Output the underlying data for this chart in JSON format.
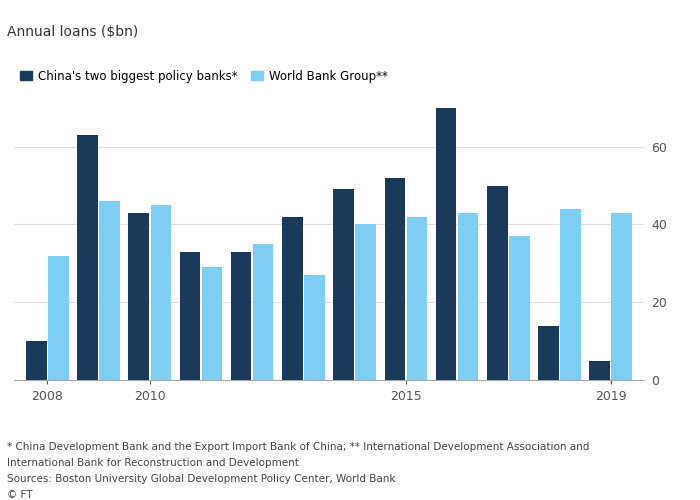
{
  "years": [
    2008,
    2009,
    2010,
    2011,
    2012,
    2013,
    2014,
    2015,
    2016,
    2017,
    2018,
    2019
  ],
  "china_banks": [
    10,
    63,
    43,
    33,
    33,
    42,
    49,
    52,
    70,
    50,
    14,
    5
  ],
  "world_bank": [
    32,
    46,
    45,
    29,
    35,
    27,
    40,
    42,
    43,
    37,
    44,
    43
  ],
  "china_color": "#1a3a5c",
  "worldbank_color": "#7ecef4",
  "title": "Annual loans ($bn)",
  "legend_china": "China's two biggest policy banks*",
  "legend_wb": "World Bank Group**",
  "footnote1": "* China Development Bank and the Export Import Bank of China; ** International Development Association and",
  "footnote2": "International Bank for Reconstruction and Development",
  "footnote3": "Sources: Boston University Global Development Policy Center, World Bank",
  "footnote4": "© FT",
  "ylim": [
    0,
    72
  ],
  "yticks": [
    0,
    20,
    40,
    60
  ],
  "bg_color": "#ffffff",
  "grid_color": "#e0e0e0"
}
